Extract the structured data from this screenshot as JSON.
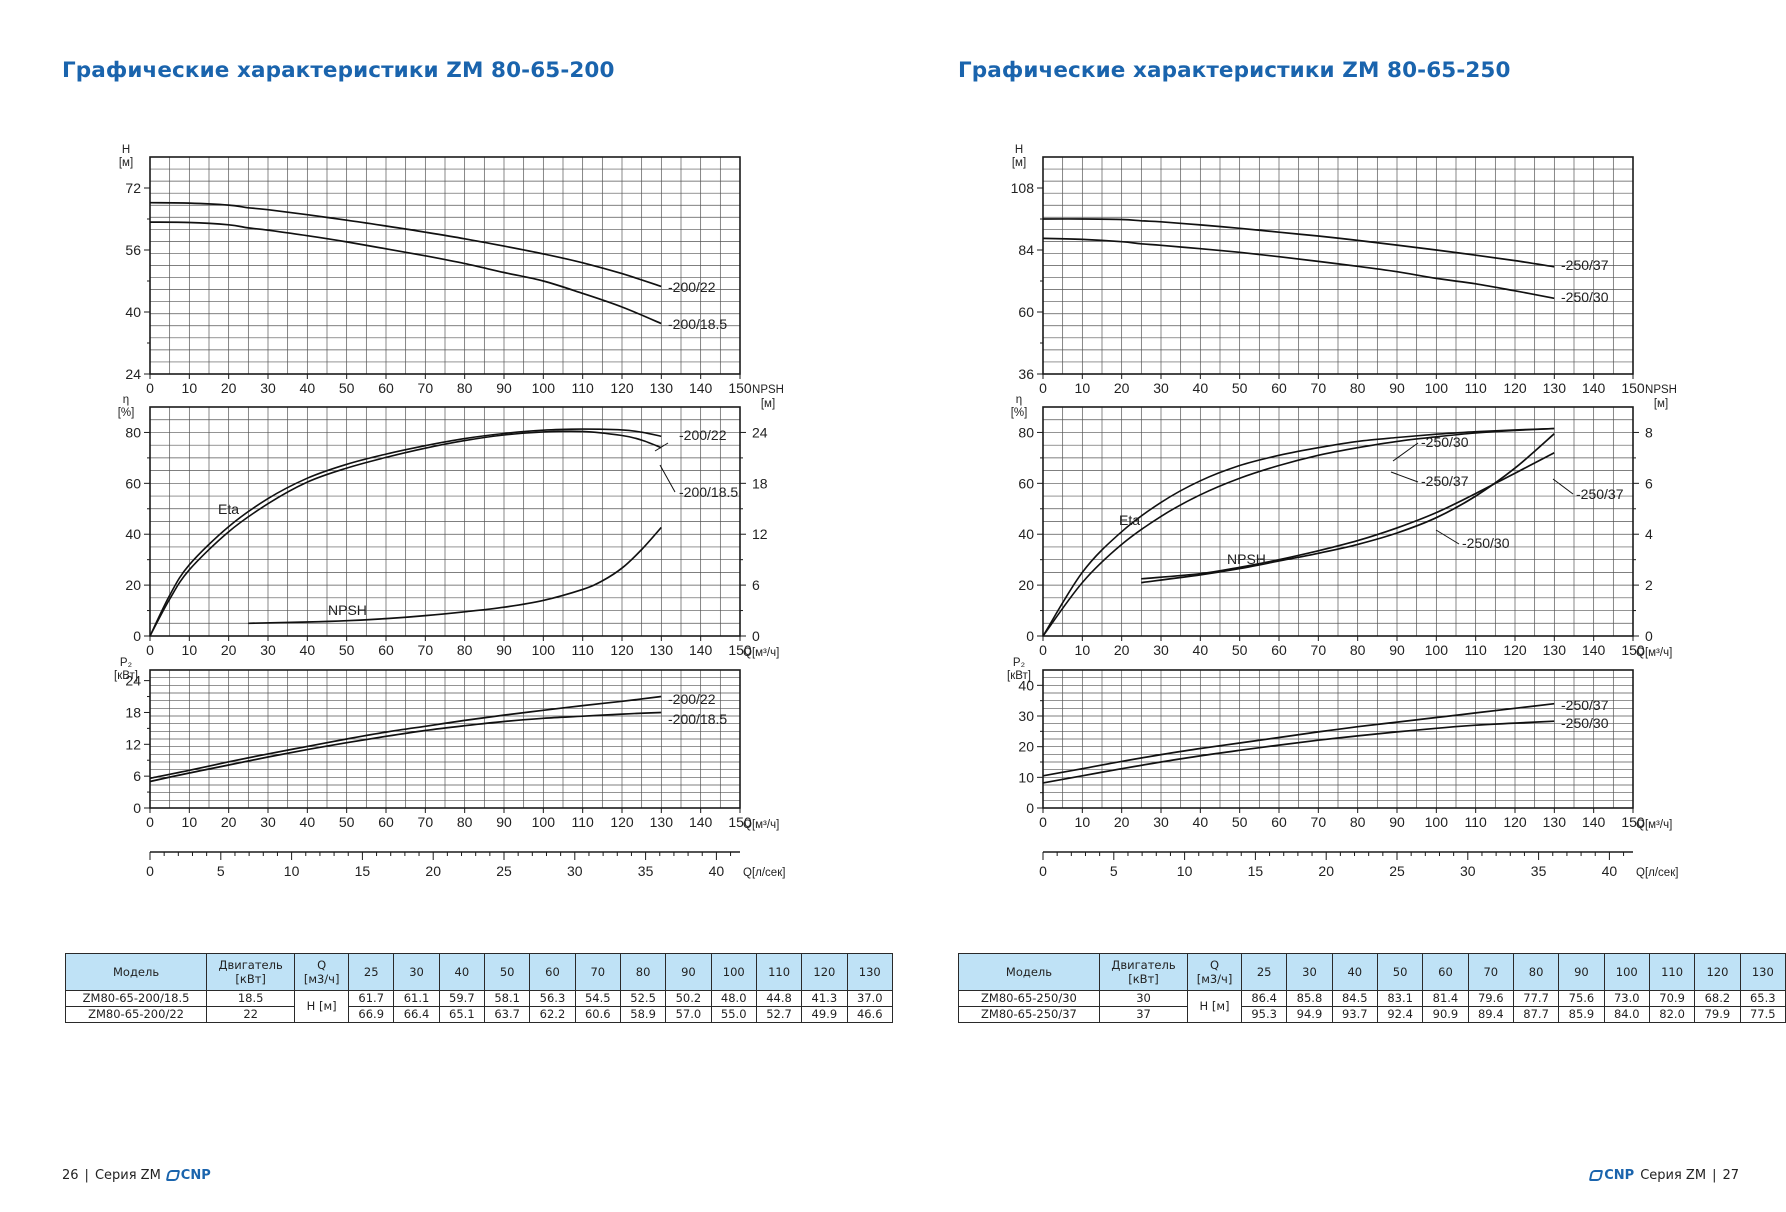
{
  "pages": [
    {
      "title": "Графические характеристики ZM 80-65-200",
      "footer": {
        "page_number": "26",
        "series": "Серия ZM",
        "logo": "CNP"
      },
      "table": {
        "headers": {
          "model": "Модель",
          "motor": "Двигатель\n[кВт]",
          "q": "Q\n[м3/ч]",
          "flows": [
            "25",
            "30",
            "40",
            "50",
            "60",
            "70",
            "80",
            "90",
            "100",
            "110",
            "120",
            "130"
          ]
        },
        "h_label": "H [м]",
        "rows": [
          {
            "model": "ZM80-65-200/18.5",
            "motor": "18.5",
            "values": [
              "61.7",
              "61.1",
              "59.7",
              "58.1",
              "56.3",
              "54.5",
              "52.5",
              "50.2",
              "48.0",
              "44.8",
              "41.3",
              "37.0"
            ]
          },
          {
            "model": "ZM80-65-200/22",
            "motor": "22",
            "values": [
              "66.9",
              "66.4",
              "65.1",
              "63.7",
              "62.2",
              "60.6",
              "58.9",
              "57.0",
              "55.0",
              "52.7",
              "49.9",
              "46.6"
            ]
          }
        ]
      }
    },
    {
      "title": "Графические характеристики ZM 80-65-250",
      "footer": {
        "page_number": "27",
        "series": "Серия ZM",
        "logo": "CNP"
      },
      "table": {
        "headers": {
          "model": "Модель",
          "motor": "Двигатель\n[кВт]",
          "q": "Q\n[м3/ч]",
          "flows": [
            "25",
            "30",
            "40",
            "50",
            "60",
            "70",
            "80",
            "90",
            "100",
            "110",
            "120",
            "130"
          ]
        },
        "h_label": "H [м]",
        "rows": [
          {
            "model": "ZM80-65-250/30",
            "motor": "30",
            "values": [
              "86.4",
              "85.8",
              "84.5",
              "83.1",
              "81.4",
              "79.6",
              "77.7",
              "75.6",
              "73.0",
              "70.9",
              "68.2",
              "65.3"
            ]
          },
          {
            "model": "ZM80-65-250/37",
            "motor": "37",
            "values": [
              "95.3",
              "94.9",
              "93.7",
              "92.4",
              "90.9",
              "89.4",
              "87.7",
              "85.9",
              "84.0",
              "82.0",
              "79.9",
              "77.5"
            ]
          }
        ]
      }
    }
  ],
  "chart_data": [
    {
      "type": "line",
      "panel": "head",
      "page": 0,
      "ylabel": "H\n[м]",
      "xlim": [
        0,
        150
      ],
      "ylim": [
        24,
        80
      ],
      "yticks": [
        24,
        40,
        56,
        72
      ],
      "xticks": [
        0,
        10,
        20,
        30,
        40,
        50,
        60,
        70,
        80,
        90,
        100,
        110,
        120,
        130,
        140,
        150
      ],
      "grid": true,
      "series": [
        {
          "name": "-200/22",
          "x": [
            0,
            10,
            20,
            25,
            30,
            40,
            50,
            60,
            70,
            80,
            90,
            100,
            110,
            120,
            130
          ],
          "y": [
            68.2,
            68.1,
            67.6,
            66.9,
            66.4,
            65.1,
            63.7,
            62.2,
            60.6,
            58.9,
            57.0,
            55.0,
            52.7,
            49.9,
            46.6
          ]
        },
        {
          "name": "-200/18.5",
          "x": [
            0,
            10,
            20,
            25,
            30,
            40,
            50,
            60,
            70,
            80,
            90,
            100,
            110,
            120,
            130
          ],
          "y": [
            63.2,
            63.1,
            62.5,
            61.7,
            61.1,
            59.7,
            58.1,
            56.3,
            54.5,
            52.5,
            50.2,
            48.0,
            44.8,
            41.3,
            37.0
          ]
        }
      ]
    },
    {
      "type": "line",
      "panel": "efficiency",
      "page": 0,
      "ylabel": "η\n[%]",
      "y2label": "NPSH\n[м]",
      "xlabel": "Q[м³/ч]",
      "xlim": [
        0,
        150
      ],
      "ylim": [
        0,
        90
      ],
      "yticks": [
        0,
        20,
        40,
        60,
        80
      ],
      "y2lim": [
        0,
        27
      ],
      "y2ticks": [
        0,
        6,
        12,
        18,
        24
      ],
      "xticks": [
        0,
        10,
        20,
        30,
        40,
        50,
        60,
        70,
        80,
        90,
        100,
        110,
        120,
        130,
        140,
        150
      ],
      "grid": true,
      "annotations": [
        "Eta",
        "NPSH"
      ],
      "series": [
        {
          "name": "-200/22",
          "axis": "left",
          "x": [
            0,
            5,
            10,
            20,
            30,
            40,
            50,
            60,
            70,
            80,
            90,
            100,
            110,
            120,
            125,
            130
          ],
          "y": [
            0,
            16,
            28,
            43,
            54,
            62,
            67.5,
            71.5,
            74.8,
            77.6,
            79.6,
            80.9,
            81.3,
            81,
            80.1,
            78.5
          ]
        },
        {
          "name": "-200/18.5",
          "axis": "left",
          "x": [
            0,
            5,
            10,
            20,
            30,
            40,
            50,
            60,
            70,
            80,
            90,
            100,
            110,
            120,
            125,
            130
          ],
          "y": [
            0,
            14.5,
            26,
            41,
            52,
            60.5,
            66,
            70.2,
            73.8,
            76.8,
            79,
            80.2,
            80.4,
            78.8,
            77,
            74
          ]
        },
        {
          "name": "NPSH",
          "axis": "right",
          "x": [
            25,
            40,
            50,
            60,
            70,
            80,
            90,
            100,
            110,
            115,
            120,
            125,
            130
          ],
          "y": [
            1.5,
            1.65,
            1.8,
            2.05,
            2.4,
            2.85,
            3.4,
            4.2,
            5.5,
            6.5,
            8.0,
            10.2,
            12.8
          ]
        }
      ]
    },
    {
      "type": "line",
      "panel": "power",
      "page": 0,
      "ylabel": "P₂\n[кВт]",
      "xlabel": "Q[м³/ч]",
      "x2label": "Q[л/сек]",
      "xlim": [
        0,
        150
      ],
      "ylim": [
        0,
        26
      ],
      "yticks": [
        0,
        6,
        12,
        18,
        24
      ],
      "xticks": [
        0,
        10,
        20,
        30,
        40,
        50,
        60,
        70,
        80,
        90,
        100,
        110,
        120,
        130,
        140,
        150
      ],
      "x2ticks": [
        0,
        5,
        10,
        15,
        20,
        25,
        30,
        35,
        40
      ],
      "grid": true,
      "series": [
        {
          "name": "-200/22",
          "x": [
            0,
            10,
            20,
            30,
            40,
            50,
            60,
            70,
            80,
            90,
            100,
            110,
            120,
            130
          ],
          "y": [
            5.6,
            7.1,
            8.7,
            10.2,
            11.6,
            13,
            14.3,
            15.4,
            16.5,
            17.5,
            18.4,
            19.3,
            20.1,
            21
          ]
        },
        {
          "name": "-200/18.5",
          "x": [
            0,
            10,
            20,
            30,
            40,
            50,
            60,
            70,
            80,
            90,
            100,
            110,
            120,
            130
          ],
          "y": [
            5.0,
            6.6,
            8.1,
            9.6,
            11,
            12.3,
            13.5,
            14.6,
            15.5,
            16.3,
            16.9,
            17.3,
            17.7,
            18
          ]
        }
      ]
    },
    {
      "type": "line",
      "panel": "head",
      "page": 1,
      "ylabel": "H\n[м]",
      "xlim": [
        0,
        150
      ],
      "ylim": [
        36,
        120
      ],
      "yticks": [
        36,
        60,
        84,
        108
      ],
      "xticks": [
        0,
        10,
        20,
        30,
        40,
        50,
        60,
        70,
        80,
        90,
        100,
        110,
        120,
        130,
        140,
        150
      ],
      "grid": true,
      "series": [
        {
          "name": "-250/37",
          "x": [
            0,
            10,
            20,
            25,
            30,
            40,
            50,
            60,
            70,
            80,
            90,
            100,
            110,
            120,
            130
          ],
          "y": [
            96.0,
            96.0,
            95.8,
            95.3,
            94.9,
            93.7,
            92.4,
            90.9,
            89.4,
            87.7,
            85.9,
            84.0,
            82.0,
            79.9,
            77.5
          ]
        },
        {
          "name": "-250/30",
          "x": [
            0,
            10,
            20,
            25,
            30,
            40,
            50,
            60,
            70,
            80,
            90,
            100,
            110,
            120,
            130
          ],
          "y": [
            88.5,
            88.1,
            87.2,
            86.4,
            85.8,
            84.5,
            83.1,
            81.4,
            79.6,
            77.7,
            75.6,
            73.0,
            70.9,
            68.2,
            65.3
          ]
        }
      ]
    },
    {
      "type": "line",
      "panel": "efficiency",
      "page": 1,
      "ylabel": "η\n[%]",
      "y2label": "NPSH\n[м]",
      "xlabel": "Q[м³/ч]",
      "xlim": [
        0,
        150
      ],
      "ylim": [
        0,
        90
      ],
      "yticks": [
        0,
        20,
        40,
        60,
        80
      ],
      "y2lim": [
        0,
        9
      ],
      "y2ticks": [
        0,
        2,
        4,
        6,
        8
      ],
      "xticks": [
        0,
        10,
        20,
        30,
        40,
        50,
        60,
        70,
        80,
        90,
        100,
        110,
        120,
        130,
        140,
        150
      ],
      "grid": true,
      "annotations": [
        "Eta",
        "NPSH"
      ],
      "series": [
        {
          "name": "-250/30",
          "axis": "left",
          "x": [
            0,
            10,
            20,
            30,
            40,
            50,
            60,
            70,
            80,
            90,
            100,
            110,
            120,
            130
          ],
          "y": [
            0,
            25,
            41,
            52.5,
            61,
            67,
            71,
            74,
            76.5,
            78,
            79.3,
            80.3,
            81,
            81.5
          ]
        },
        {
          "name": "-250/37",
          "axis": "left",
          "x": [
            0,
            10,
            20,
            30,
            40,
            50,
            60,
            70,
            80,
            90,
            100,
            110,
            120,
            130
          ],
          "y": [
            0,
            21,
            36,
            47,
            55.5,
            62,
            67,
            71,
            74,
            76.5,
            78.3,
            79.8,
            80.8,
            81.5
          ]
        },
        {
          "name": "NPSH -250/37",
          "axis": "right",
          "x": [
            25,
            40,
            50,
            60,
            70,
            80,
            90,
            100,
            110,
            120,
            130
          ],
          "y": [
            2.25,
            2.45,
            2.7,
            3.0,
            3.35,
            3.75,
            4.25,
            4.85,
            5.6,
            6.4,
            7.2
          ]
        },
        {
          "name": "NPSH -250/30",
          "axis": "right",
          "x": [
            25,
            40,
            50,
            60,
            70,
            80,
            90,
            100,
            110,
            120,
            130
          ],
          "y": [
            2.1,
            2.4,
            2.65,
            2.95,
            3.25,
            3.6,
            4.05,
            4.65,
            5.5,
            6.6,
            7.95
          ]
        }
      ]
    },
    {
      "type": "line",
      "panel": "power",
      "page": 1,
      "ylabel": "P₂\n[кВт]",
      "xlabel": "Q[м³/ч]",
      "x2label": "Q[л/сек]",
      "xlim": [
        0,
        150
      ],
      "ylim": [
        0,
        45
      ],
      "yticks": [
        0,
        10,
        20,
        30,
        40
      ],
      "xticks": [
        0,
        10,
        20,
        30,
        40,
        50,
        60,
        70,
        80,
        90,
        100,
        110,
        120,
        130,
        140,
        150
      ],
      "x2ticks": [
        0,
        5,
        10,
        15,
        20,
        25,
        30,
        35,
        40
      ],
      "grid": true,
      "series": [
        {
          "name": "-250/37",
          "x": [
            0,
            10,
            20,
            30,
            40,
            50,
            60,
            70,
            80,
            90,
            100,
            110,
            120,
            130
          ],
          "y": [
            10.5,
            12.8,
            15.2,
            17.4,
            19.4,
            21.2,
            23,
            24.8,
            26.5,
            28,
            29.5,
            31,
            32.5,
            34
          ]
        },
        {
          "name": "-250/30",
          "x": [
            0,
            10,
            20,
            30,
            40,
            50,
            60,
            70,
            80,
            90,
            100,
            110,
            120,
            130
          ],
          "y": [
            8.2,
            10.5,
            12.8,
            15,
            17,
            18.8,
            20.5,
            22.1,
            23.5,
            24.8,
            26,
            27,
            27.7,
            28.3
          ]
        }
      ]
    }
  ]
}
